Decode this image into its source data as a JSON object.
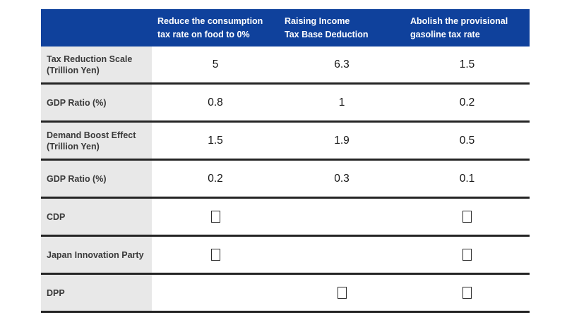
{
  "colors": {
    "header_bg": "#0F419C",
    "header_text": "#FFFFFF",
    "label_bg": "#E8E8E8",
    "label_text": "#3A3A3A",
    "row_border": "#242424",
    "value_text": "#141414"
  },
  "table": {
    "columns": [
      "Reduce the consumption\ntax rate on food to 0%",
      "Raising Income\nTax Base Deduction",
      "Abolish the provisional\ngasoline tax rate"
    ],
    "rows": [
      {
        "label": "Tax Reduction Scale (Trillion Yen)",
        "type": "values",
        "values": [
          "5",
          "6.3",
          "1.5"
        ]
      },
      {
        "label": "GDP Ratio (%)",
        "type": "values",
        "values": [
          "0.8",
          "1",
          "0.2"
        ]
      },
      {
        "label": "Demand Boost Effect (Trillion Yen)",
        "type": "values",
        "values": [
          "1.5",
          "1.9",
          "0.5"
        ]
      },
      {
        "label": "GDP Ratio (%)",
        "type": "values",
        "values": [
          "0.2",
          "0.3",
          "0.1"
        ]
      },
      {
        "label": "CDP",
        "type": "checks",
        "checks": [
          true,
          false,
          true
        ]
      },
      {
        "label": "Japan Innovation Party",
        "type": "checks",
        "checks": [
          true,
          false,
          true
        ]
      },
      {
        "label": "DPP",
        "type": "checks",
        "checks": [
          false,
          true,
          true
        ]
      }
    ],
    "check_glyph": "empty-box (unrendered checkmark glyph)"
  },
  "chart_data": {
    "type": "table",
    "title": "",
    "columns": [
      "Reduce the consumption tax rate on food to 0%",
      "Raising Income Tax Base Deduction",
      "Abolish the provisional gasoline tax rate"
    ],
    "row_labels": [
      "Tax Reduction Scale (Trillion Yen)",
      "GDP Ratio (%)",
      "Demand Boost Effect (Trillion Yen)",
      "GDP Ratio (%)",
      "CDP",
      "Japan Innovation Party",
      "DPP"
    ],
    "numeric_rows": {
      "Tax Reduction Scale (Trillion Yen)": [
        5,
        6.3,
        1.5
      ],
      "GDP Ratio (%) [tax reduction]": [
        0.8,
        1,
        0.2
      ],
      "Demand Boost Effect (Trillion Yen)": [
        1.5,
        1.9,
        0.5
      ],
      "GDP Ratio (%) [demand boost]": [
        0.2,
        0.3,
        0.1
      ]
    },
    "party_support_marks": {
      "CDP": [
        true,
        false,
        true
      ],
      "Japan Innovation Party": [
        true,
        false,
        true
      ],
      "DPP": [
        false,
        true,
        true
      ]
    },
    "layout_hints": {
      "header_style": "dark blue band, white bold text",
      "label_column_style": "light gray background, bold dark text",
      "row_separator": "thick dark horizontal rules",
      "marks_render_as": "small empty rectangles (tofu glyphs)"
    }
  }
}
